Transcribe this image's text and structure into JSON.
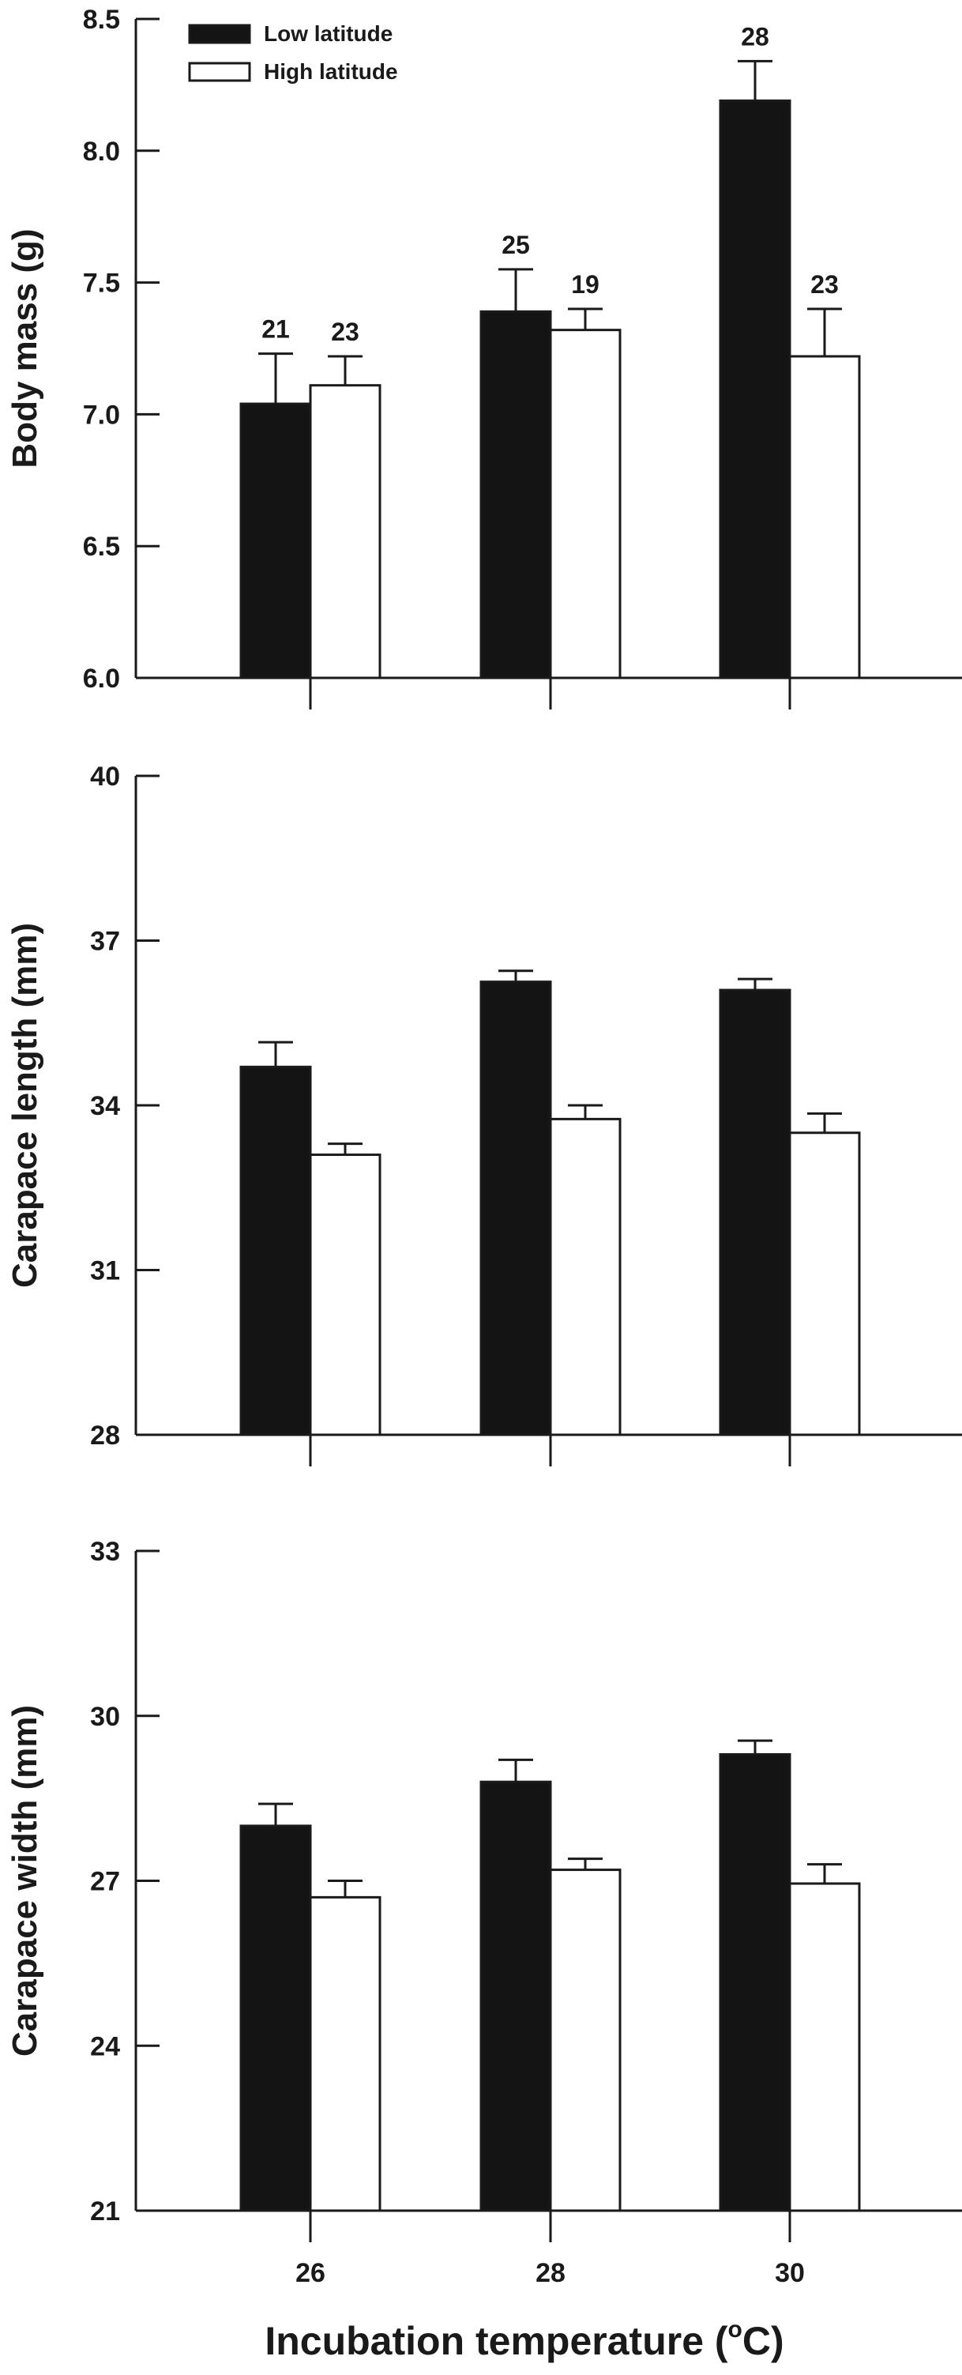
{
  "chart_data": [
    {
      "type": "bar",
      "ylabel": "Body mass (g)",
      "ylim": [
        6.0,
        8.5
      ],
      "yticks": [
        "6.0",
        "6.5",
        "7.0",
        "7.5",
        "8.0",
        "8.5"
      ],
      "categories": [
        "26",
        "28",
        "30"
      ],
      "legend": {
        "placement": "top-left"
      },
      "series": [
        {
          "name": "Low latitude",
          "values": [
            7.04,
            7.39,
            8.19
          ],
          "errors": [
            0.19,
            0.16,
            0.15
          ],
          "n": [
            "21",
            "25",
            "28"
          ],
          "color": "#141414"
        },
        {
          "name": "High latitude",
          "values": [
            7.11,
            7.32,
            7.22
          ],
          "errors": [
            0.11,
            0.08,
            0.18
          ],
          "n": [
            "23",
            "19",
            "23"
          ],
          "color": "#ffffff"
        }
      ]
    },
    {
      "type": "bar",
      "ylabel": "Carapace length (mm)",
      "ylim": [
        28,
        40
      ],
      "yticks": [
        "28",
        "31",
        "34",
        "37",
        "40"
      ],
      "categories": [
        "26",
        "28",
        "30"
      ],
      "series": [
        {
          "name": "Low latitude",
          "values": [
            34.7,
            36.25,
            36.1
          ],
          "errors": [
            0.45,
            0.2,
            0.2
          ],
          "color": "#141414"
        },
        {
          "name": "High latitude",
          "values": [
            33.1,
            33.75,
            33.5
          ],
          "errors": [
            0.2,
            0.25,
            0.35
          ],
          "color": "#ffffff"
        }
      ]
    },
    {
      "type": "bar",
      "ylabel": "Carapace width (mm)",
      "ylim": [
        21,
        33
      ],
      "yticks": [
        "21",
        "24",
        "27",
        "30",
        "33"
      ],
      "categories": [
        "26",
        "28",
        "30"
      ],
      "series": [
        {
          "name": "Low latitude",
          "values": [
            28.0,
            28.8,
            29.3
          ],
          "errors": [
            0.4,
            0.4,
            0.25
          ],
          "color": "#141414"
        },
        {
          "name": "High latitude",
          "values": [
            26.7,
            27.2,
            26.95
          ],
          "errors": [
            0.3,
            0.2,
            0.35
          ],
          "color": "#ffffff"
        }
      ]
    }
  ],
  "x_axis": {
    "label": "Incubation temperature (",
    "label_sup": "o",
    "label_end": "C)"
  }
}
